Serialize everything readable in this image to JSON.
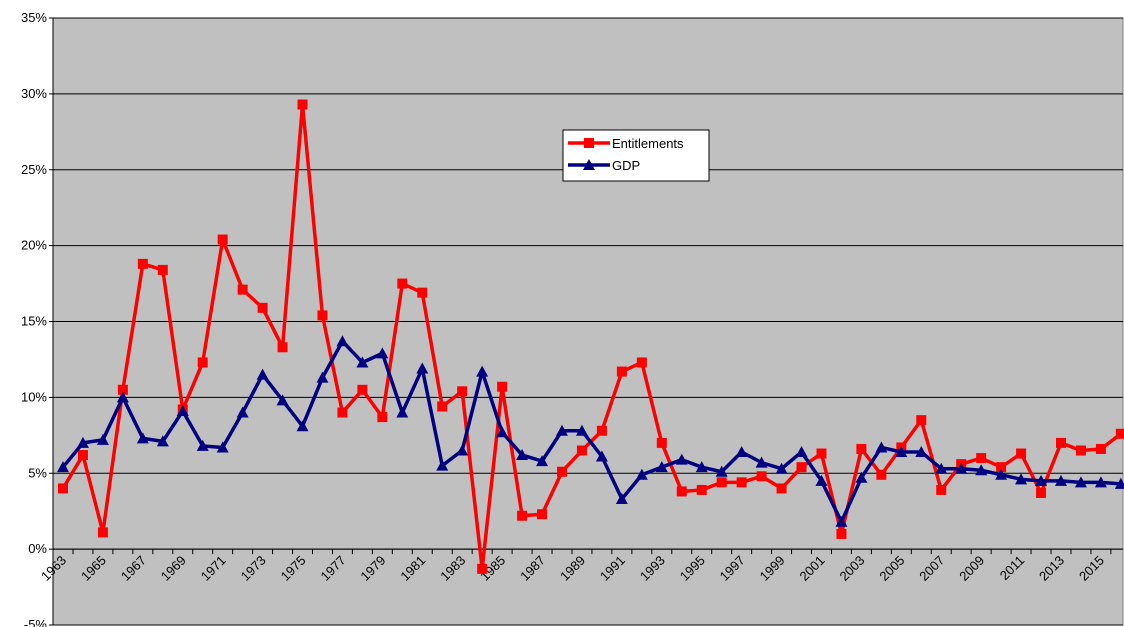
{
  "chart_data": {
    "type": "line",
    "categories": [
      "1963",
      null,
      "1965",
      null,
      "1967",
      null,
      "1969",
      null,
      "1971",
      null,
      "1973",
      null,
      "1975",
      null,
      "1977",
      null,
      "1979",
      null,
      "1981",
      null,
      "1983",
      null,
      "1985",
      null,
      "1987",
      null,
      "1989",
      null,
      "1991",
      null,
      "1993",
      null,
      "1995",
      null,
      "1997",
      null,
      "1999",
      null,
      "2001",
      null,
      "2003",
      null,
      "2005",
      null,
      "2007",
      null,
      "2009",
      null,
      "2011",
      null,
      "2013",
      null,
      "2015",
      null
    ],
    "series": [
      {
        "name": "Entitlements",
        "color": "#ff0000",
        "marker": "square",
        "values": [
          4.0,
          6.2,
          1.1,
          10.5,
          18.8,
          18.4,
          9.2,
          12.3,
          20.4,
          17.1,
          15.9,
          13.3,
          29.3,
          15.4,
          9.0,
          10.5,
          8.7,
          17.5,
          16.9,
          9.4,
          10.4,
          -1.3,
          10.7,
          2.2,
          2.3,
          5.1,
          6.5,
          7.8,
          11.7,
          12.3,
          7.0,
          3.8,
          3.9,
          4.4,
          4.4,
          4.8,
          4.0,
          5.4,
          6.3,
          1.0,
          6.6,
          4.9,
          6.7,
          8.5,
          3.9,
          5.6,
          6.0,
          5.4,
          6.3,
          3.7,
          7.0,
          6.5,
          6.6,
          7.6
        ]
      },
      {
        "name": "GDP",
        "color": "#000080",
        "marker": "triangle",
        "values": [
          5.4,
          7.0,
          7.2,
          10.0,
          7.3,
          7.1,
          9.1,
          6.8,
          6.7,
          9.0,
          11.5,
          9.8,
          8.1,
          11.3,
          13.7,
          12.3,
          12.9,
          9.0,
          11.9,
          5.5,
          6.5,
          11.7,
          7.7,
          6.2,
          5.8,
          7.8,
          7.8,
          6.1,
          3.3,
          4.9,
          5.4,
          5.9,
          5.4,
          5.1,
          6.4,
          5.7,
          5.3,
          6.4,
          4.5,
          1.8,
          4.7,
          6.7,
          6.4,
          6.4,
          5.3,
          5.3,
          5.2,
          4.9,
          4.6,
          4.5,
          4.5,
          4.4,
          4.4,
          4.3
        ]
      }
    ],
    "ylim": [
      -5,
      35
    ],
    "yticks": [
      {
        "value": -5,
        "label": "-5%"
      },
      {
        "value": 0,
        "label": "0%"
      },
      {
        "value": 5,
        "label": "5%"
      },
      {
        "value": 10,
        "label": "10%"
      },
      {
        "value": 15,
        "label": "15%"
      },
      {
        "value": 20,
        "label": "20%"
      },
      {
        "value": 25,
        "label": "25%"
      },
      {
        "value": 30,
        "label": "30%"
      },
      {
        "value": 35,
        "label": "35%"
      }
    ],
    "grid": true,
    "background": "#c0c0c0"
  }
}
